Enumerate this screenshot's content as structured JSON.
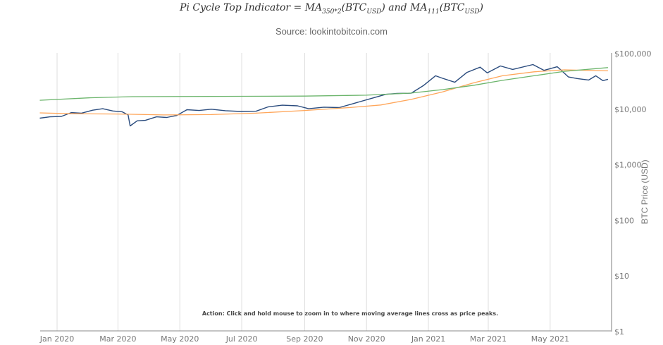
{
  "title": {
    "prefix": "Pi Cycle Top Indicator = MA",
    "sub1": "350*2",
    "mid1": "(BTC",
    "sub2": "USD",
    "mid2": ") and MA",
    "sub3": "111",
    "mid3": "(BTC",
    "sub4": "USD",
    "suffix": ")"
  },
  "subtitle": "Source: lookintobitcoin.com",
  "chart_data": {
    "type": "line",
    "y_scale": "log",
    "ylim": [
      1,
      100000
    ],
    "xlim": [
      "2019-12-15",
      "2021-07-20"
    ],
    "ylabel": "BTC Price (USD)",
    "y_ticks": [
      {
        "v": 1,
        "label": "$1"
      },
      {
        "v": 10,
        "label": "$10"
      },
      {
        "v": 100,
        "label": "$100"
      },
      {
        "v": 1000,
        "label": "$1,000"
      },
      {
        "v": 10000,
        "label": "$10,000"
      },
      {
        "v": 100000,
        "label": "$100,000"
      }
    ],
    "x_ticks": [
      {
        "d": "2020-01-01",
        "label": "Jan 2020"
      },
      {
        "d": "2020-03-01",
        "label": "Mar 2020"
      },
      {
        "d": "2020-05-01",
        "label": "May 2020"
      },
      {
        "d": "2020-07-01",
        "label": "Jul 2020"
      },
      {
        "d": "2020-09-01",
        "label": "Sep 2020"
      },
      {
        "d": "2020-11-01",
        "label": "Nov 2020"
      },
      {
        "d": "2021-01-01",
        "label": "Jan 2021"
      },
      {
        "d": "2021-03-01",
        "label": "Mar 2021"
      },
      {
        "d": "2021-05-01",
        "label": "May 2021"
      }
    ],
    "grid": {
      "x": true,
      "y": false
    },
    "annotation": "Action: Click and hold mouse to zoom in to where moving average lines cross as price peaks.",
    "series": [
      {
        "id": "price",
        "color": "#2b4c7e",
        "points": [
          [
            "2019-12-15",
            6900
          ],
          [
            "2019-12-25",
            7300
          ],
          [
            "2020-01-05",
            7400
          ],
          [
            "2020-01-15",
            8700
          ],
          [
            "2020-01-25",
            8500
          ],
          [
            "2020-02-05",
            9600
          ],
          [
            "2020-02-15",
            10200
          ],
          [
            "2020-02-25",
            9300
          ],
          [
            "2020-03-05",
            9000
          ],
          [
            "2020-03-11",
            7900
          ],
          [
            "2020-03-13",
            5000
          ],
          [
            "2020-03-20",
            6200
          ],
          [
            "2020-03-28",
            6300
          ],
          [
            "2020-04-08",
            7300
          ],
          [
            "2020-04-18",
            7100
          ],
          [
            "2020-04-28",
            7700
          ],
          [
            "2020-05-08",
            9800
          ],
          [
            "2020-05-20",
            9500
          ],
          [
            "2020-06-01",
            10000
          ],
          [
            "2020-06-15",
            9400
          ],
          [
            "2020-06-30",
            9100
          ],
          [
            "2020-07-15",
            9200
          ],
          [
            "2020-07-27",
            11000
          ],
          [
            "2020-08-10",
            11800
          ],
          [
            "2020-08-25",
            11500
          ],
          [
            "2020-09-05",
            10200
          ],
          [
            "2020-09-20",
            10900
          ],
          [
            "2020-10-05",
            10700
          ],
          [
            "2020-10-20",
            12800
          ],
          [
            "2020-11-05",
            15500
          ],
          [
            "2020-11-20",
            18500
          ],
          [
            "2020-12-01",
            19200
          ],
          [
            "2020-12-15",
            19400
          ],
          [
            "2020-12-27",
            26500
          ],
          [
            "2021-01-08",
            40000
          ],
          [
            "2021-01-15",
            36000
          ],
          [
            "2021-01-27",
            30500
          ],
          [
            "2021-02-08",
            46000
          ],
          [
            "2021-02-21",
            57000
          ],
          [
            "2021-02-28",
            45000
          ],
          [
            "2021-03-13",
            60000
          ],
          [
            "2021-03-25",
            52000
          ],
          [
            "2021-04-14",
            63500
          ],
          [
            "2021-04-25",
            50000
          ],
          [
            "2021-05-08",
            58000
          ],
          [
            "2021-05-12",
            50000
          ],
          [
            "2021-05-19",
            38000
          ],
          [
            "2021-05-28",
            35500
          ],
          [
            "2021-06-08",
            33500
          ],
          [
            "2021-06-15",
            40000
          ],
          [
            "2021-06-22",
            32700
          ],
          [
            "2021-06-27",
            34500
          ]
        ]
      },
      {
        "id": "ma111",
        "color": "#ffa65a",
        "points": [
          [
            "2019-12-15",
            8600
          ],
          [
            "2020-01-15",
            8300
          ],
          [
            "2020-03-01",
            8200
          ],
          [
            "2020-04-15",
            7900
          ],
          [
            "2020-06-01",
            8000
          ],
          [
            "2020-07-15",
            8500
          ],
          [
            "2020-09-01",
            9500
          ],
          [
            "2020-10-15",
            10700
          ],
          [
            "2020-11-15",
            11900
          ],
          [
            "2020-12-15",
            15000
          ],
          [
            "2021-01-15",
            20500
          ],
          [
            "2021-02-15",
            30000
          ],
          [
            "2021-03-15",
            40000
          ],
          [
            "2021-04-15",
            47000
          ],
          [
            "2021-05-15",
            51000
          ],
          [
            "2021-06-27",
            49000
          ]
        ]
      },
      {
        "id": "ma350x2",
        "color": "#6cb56c",
        "points": [
          [
            "2019-12-15",
            14500
          ],
          [
            "2020-02-01",
            16000
          ],
          [
            "2020-03-15",
            16800
          ],
          [
            "2020-06-01",
            17000
          ],
          [
            "2020-09-01",
            17200
          ],
          [
            "2020-11-01",
            17900
          ],
          [
            "2020-12-15",
            19500
          ],
          [
            "2021-01-15",
            22500
          ],
          [
            "2021-02-15",
            27000
          ],
          [
            "2021-03-15",
            33000
          ],
          [
            "2021-04-15",
            40000
          ],
          [
            "2021-05-15",
            48000
          ],
          [
            "2021-06-27",
            56000
          ]
        ]
      }
    ]
  }
}
